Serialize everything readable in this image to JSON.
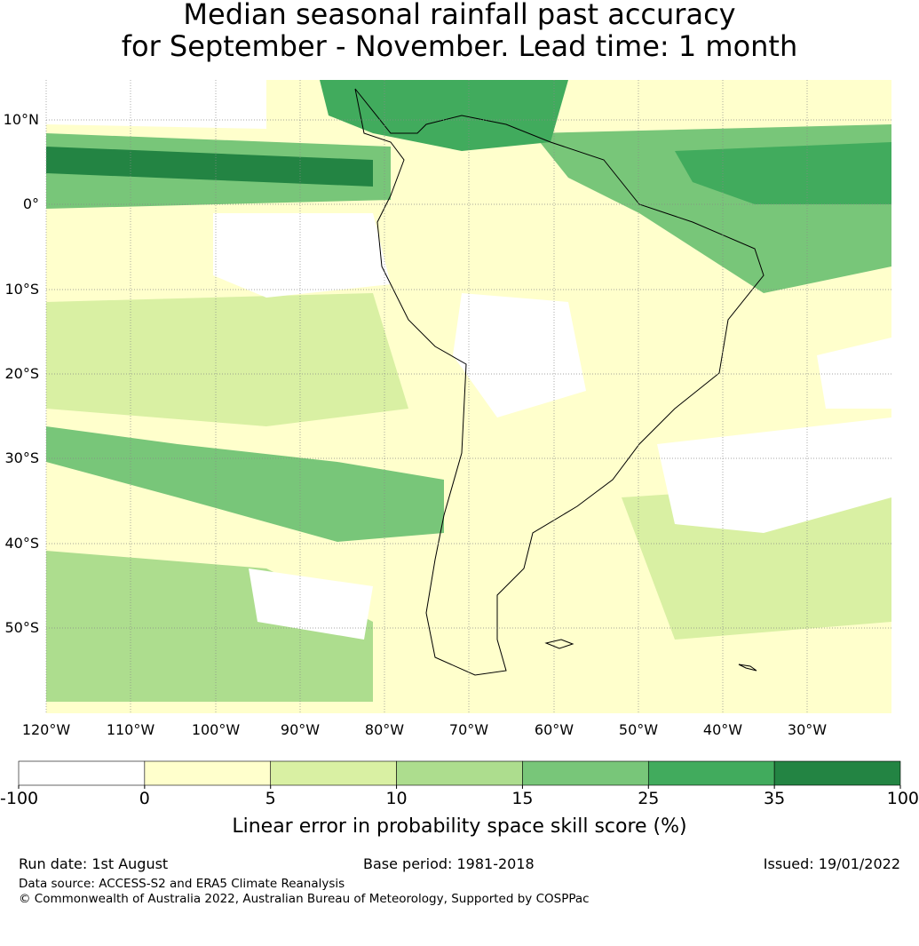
{
  "title": {
    "line1": "Median seasonal rainfall past accuracy",
    "line2": "for September - November. Lead time: 1 month"
  },
  "map": {
    "lat_labels": [
      "10°N",
      "0°",
      "10°S",
      "20°S",
      "30°S",
      "40°S",
      "50°S"
    ],
    "lon_labels": [
      "120°W",
      "110°W",
      "100°W",
      "90°W",
      "80°W",
      "70°W",
      "60°W",
      "50°W",
      "40°W",
      "30°W"
    ],
    "ocean_color": "#ffffff",
    "grid_lines": "dotted"
  },
  "colorbar": {
    "ticks": [
      "-100",
      "0",
      "5",
      "10",
      "15",
      "25",
      "35",
      "100"
    ],
    "colors": [
      "#ffffff",
      "#ffffcc",
      "#d9f0a3",
      "#addd8e",
      "#78c679",
      "#41ab5d",
      "#238443"
    ],
    "label": "Linear error in probability space skill score (%)"
  },
  "footer": {
    "run_date": "Run date: 1st August",
    "base_period": "Base period: 1981-2018",
    "issued": "Issued: 19/01/2022",
    "data_source": "Data source: ACCESS-S2 and ERA5 Climate Reanalysis",
    "copyright": "© Commonwealth of Australia 2022, Australian Bureau of Meteorology, Supported by COSPPac"
  }
}
